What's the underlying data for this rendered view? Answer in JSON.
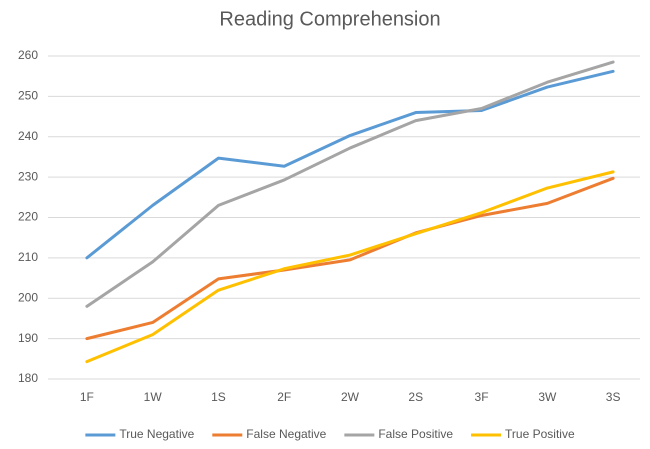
{
  "chart_data": {
    "type": "line",
    "title": "Reading Comprehension",
    "categories": [
      "1F",
      "1W",
      "1S",
      "2F",
      "2W",
      "2S",
      "3F",
      "3W",
      "3S"
    ],
    "series": [
      {
        "name": "True Negative",
        "color": "#5b9bd5",
        "values": [
          210,
          223,
          234.7,
          232.7,
          240.3,
          246,
          246.5,
          252.3,
          256.2
        ]
      },
      {
        "name": "False Negative",
        "color": "#ed7d31",
        "values": [
          190,
          194,
          204.8,
          207,
          209.5,
          216.2,
          220.5,
          223.5,
          229.7
        ]
      },
      {
        "name": "False Positive",
        "color": "#a5a5a5",
        "values": [
          198,
          209,
          223,
          229.3,
          237.2,
          244,
          247,
          253.5,
          258.5
        ]
      },
      {
        "name": "True Positive",
        "color": "#ffc000",
        "values": [
          184.3,
          191,
          202,
          207.3,
          210.7,
          216,
          221.2,
          227.3,
          231.3
        ]
      }
    ],
    "ylim": [
      180,
      260
    ],
    "yticks": [
      180,
      190,
      200,
      210,
      220,
      230,
      240,
      250,
      260
    ],
    "grid": true,
    "legend": "bottom"
  }
}
